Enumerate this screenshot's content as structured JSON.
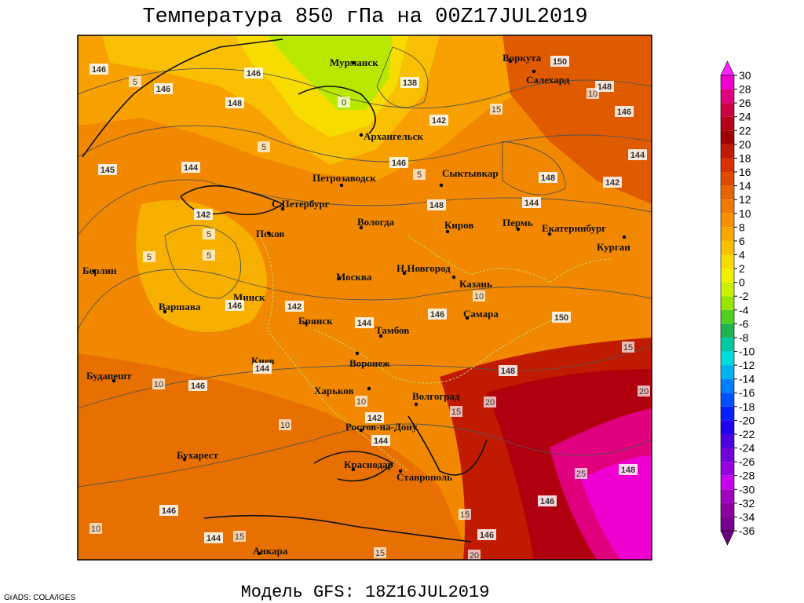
{
  "title": "Температура 850 гПа на 00Z17JUL2019",
  "footer": "Модель GFS: 18Z16JUL2019",
  "credit": "GrADS: COLA/IGES",
  "cities": [
    "Мурманск",
    "Архангельск",
    "Воркута",
    "Салехард",
    "Сыктывкар",
    "Петрозаводск",
    "С.Петербург",
    "Вологда",
    "Киров",
    "Пермь",
    "Екатеринбург",
    "Курган",
    "Псков",
    "Берлин",
    "Н.Новгород",
    "Москва",
    "Казань",
    "Минск",
    "Варшава",
    "Самара",
    "Брянск",
    "Тамбов",
    "Киев",
    "Воронеж",
    "Будапешт",
    "Харьков",
    "Волгоград",
    "Ростов-на-Дону",
    "Бухарест",
    "Краснодар",
    "Ставрополь",
    "Анкара"
  ],
  "height_labels": [
    146,
    146,
    146,
    138,
    150,
    148,
    146,
    148,
    142,
    146,
    144,
    148,
    142,
    145,
    144,
    148,
    144,
    142,
    142,
    146,
    144,
    146,
    150,
    144,
    146,
    148,
    142,
    144,
    148,
    146,
    146,
    144,
    146
  ],
  "temperature_labels": [
    5,
    0,
    15,
    10,
    5,
    5,
    5,
    5,
    5,
    10,
    15,
    10,
    10,
    15,
    20,
    20,
    10,
    25,
    15,
    10,
    15,
    15,
    20
  ],
  "colorbar": {
    "ticks": [
      30,
      28,
      26,
      24,
      22,
      20,
      18,
      16,
      14,
      12,
      10,
      8,
      6,
      4,
      2,
      0,
      -2,
      -4,
      -6,
      -8,
      -10,
      -12,
      -14,
      -16,
      -18,
      -20,
      -22,
      -24,
      -26,
      -28,
      -30,
      -32,
      -34,
      -36
    ],
    "colors": [
      "#f000d0",
      "#e0007e",
      "#cc0040",
      "#b40018",
      "#a00000",
      "#c01a00",
      "#d83000",
      "#e04a00",
      "#e86400",
      "#f07a00",
      "#f89000",
      "#f8a800",
      "#f8c000",
      "#f8dc00",
      "#f0f000",
      "#c8f000",
      "#96e600",
      "#50d020",
      "#20b450",
      "#00c8a0",
      "#00dcdc",
      "#00b4f0",
      "#0080ff",
      "#0050ff",
      "#0020ff",
      "#2000f0",
      "#4c00e0",
      "#7000d8",
      "#9600e0",
      "#c800f0",
      "#a000c0",
      "#8c00a0",
      "#780090"
    ],
    "over_color": "#ff20ff",
    "under_color": "#6a0080"
  }
}
